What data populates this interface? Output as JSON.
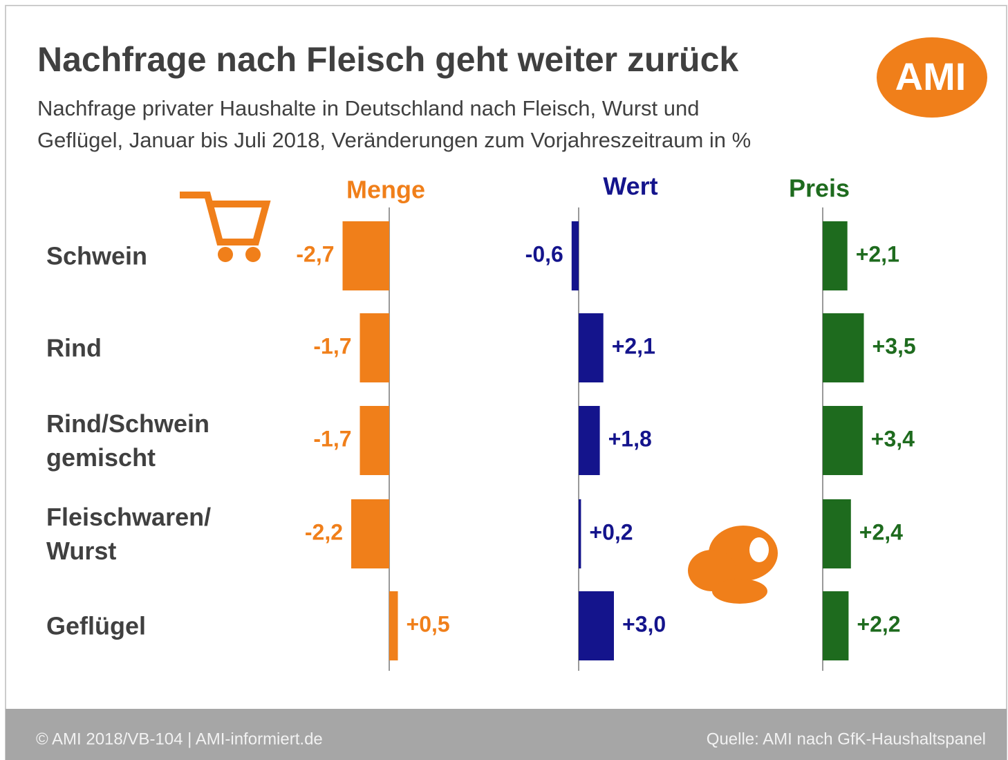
{
  "logo": "AMI",
  "footer": {
    "left": "© AMI 2018/VB-104 | AMI-informiert.de",
    "right": "Quelle: AMI nach GfK-Haushaltspanel"
  },
  "chart_data": {
    "type": "bar",
    "orientation": "horizontal",
    "title": "Nachfrage nach Fleisch geht weiter zurück",
    "subtitle": "Nachfrage privater Haushalte in Deutschland nach Fleisch, Wurst und\nGeflügel, Januar bis Juli 2018, Veränderungen zum Vorjahreszeitraum in %",
    "categories": [
      "Schwein",
      "Rind",
      "Rind/Schwein\ngemischt",
      "Fleischwaren/\nWurst",
      "Geflügel"
    ],
    "series": [
      {
        "name": "Menge",
        "color": "#f07f1a",
        "values": [
          -2.7,
          -1.7,
          -1.7,
          -2.2,
          0.5
        ],
        "value_labels": [
          "-2,7",
          "-1,7",
          "-1,7",
          "-2,2",
          "+0,5"
        ]
      },
      {
        "name": "Wert",
        "color": "#14148c",
        "values": [
          -0.6,
          2.1,
          1.8,
          0.2,
          3.0
        ],
        "value_labels": [
          "-0,6",
          "+2,1",
          "+1,8",
          "+0,2",
          "+3,0"
        ]
      },
      {
        "name": "Preis",
        "color": "#1e6b1e",
        "values": [
          2.1,
          3.5,
          3.4,
          2.4,
          2.2
        ],
        "value_labels": [
          "+2,1",
          "+3,5",
          "+3,4",
          "+2,4",
          "+2,2"
        ]
      }
    ]
  }
}
